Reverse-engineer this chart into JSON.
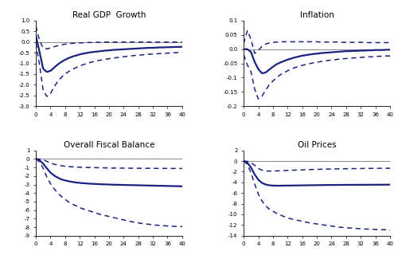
{
  "line_color": "#1a237e",
  "zero_line_color": "#888888",
  "titles": [
    "Real GDP  Growth",
    "Inflation",
    "Overall Fiscal Balance",
    "Oil Prices"
  ],
  "horizon": 41,
  "gdp": {
    "median": [
      0.3,
      -0.45,
      -1.25,
      -1.4,
      -1.35,
      -1.2,
      -1.05,
      -0.93,
      -0.83,
      -0.75,
      -0.68,
      -0.63,
      -0.58,
      -0.54,
      -0.51,
      -0.48,
      -0.46,
      -0.44,
      -0.42,
      -0.4,
      -0.39,
      -0.37,
      -0.36,
      -0.35,
      -0.34,
      -0.33,
      -0.32,
      -0.31,
      -0.3,
      -0.29,
      -0.28,
      -0.27,
      -0.27,
      -0.26,
      -0.25,
      -0.25,
      -0.24,
      -0.24,
      -0.23,
      -0.23,
      -0.22
    ],
    "upper": [
      0.75,
      0.08,
      -0.28,
      -0.32,
      -0.28,
      -0.22,
      -0.17,
      -0.13,
      -0.1,
      -0.08,
      -0.06,
      -0.05,
      -0.04,
      -0.03,
      -0.02,
      -0.02,
      -0.01,
      -0.01,
      -0.01,
      0.0,
      0.0,
      0.0,
      0.0,
      0.0,
      0.0,
      0.0,
      0.0,
      0.0,
      0.0,
      0.0,
      0.0,
      0.0,
      0.0,
      0.0,
      0.0,
      0.0,
      0.0,
      0.0,
      0.0,
      0.0,
      0.0
    ],
    "lower": [
      -0.05,
      -1.05,
      -2.25,
      -2.55,
      -2.42,
      -2.1,
      -1.85,
      -1.65,
      -1.5,
      -1.38,
      -1.28,
      -1.2,
      -1.12,
      -1.06,
      -1.0,
      -0.95,
      -0.91,
      -0.87,
      -0.84,
      -0.81,
      -0.78,
      -0.76,
      -0.73,
      -0.71,
      -0.69,
      -0.67,
      -0.65,
      -0.63,
      -0.62,
      -0.6,
      -0.59,
      -0.57,
      -0.56,
      -0.55,
      -0.54,
      -0.53,
      -0.52,
      -0.51,
      -0.5,
      -0.49,
      -0.48
    ],
    "ylim": [
      -3.0,
      1.0
    ],
    "yticks": [
      1.0,
      0.5,
      0.0,
      -0.5,
      -1.0,
      -1.5,
      -2.0,
      -2.5,
      -3.0
    ]
  },
  "inflation": {
    "median": [
      0.0,
      0.0,
      -0.01,
      -0.045,
      -0.07,
      -0.085,
      -0.082,
      -0.072,
      -0.062,
      -0.053,
      -0.047,
      -0.042,
      -0.037,
      -0.033,
      -0.029,
      -0.026,
      -0.023,
      -0.021,
      -0.019,
      -0.017,
      -0.016,
      -0.014,
      -0.013,
      -0.012,
      -0.011,
      -0.01,
      -0.009,
      -0.008,
      -0.007,
      -0.007,
      -0.006,
      -0.006,
      -0.005,
      -0.005,
      -0.004,
      -0.004,
      -0.003,
      -0.003,
      -0.003,
      -0.002,
      -0.002
    ],
    "upper": [
      0.02,
      0.065,
      0.035,
      -0.015,
      -0.005,
      0.01,
      0.018,
      0.022,
      0.024,
      0.025,
      0.026,
      0.026,
      0.026,
      0.026,
      0.026,
      0.026,
      0.026,
      0.026,
      0.026,
      0.026,
      0.026,
      0.025,
      0.025,
      0.025,
      0.025,
      0.025,
      0.025,
      0.024,
      0.024,
      0.024,
      0.024,
      0.024,
      0.024,
      0.024,
      0.023,
      0.023,
      0.023,
      0.023,
      0.023,
      0.023,
      0.023
    ],
    "lower": [
      -0.02,
      -0.055,
      -0.08,
      -0.14,
      -0.175,
      -0.165,
      -0.145,
      -0.125,
      -0.112,
      -0.1,
      -0.09,
      -0.083,
      -0.076,
      -0.07,
      -0.065,
      -0.061,
      -0.057,
      -0.054,
      -0.051,
      -0.048,
      -0.046,
      -0.044,
      -0.042,
      -0.04,
      -0.038,
      -0.037,
      -0.035,
      -0.034,
      -0.033,
      -0.032,
      -0.031,
      -0.03,
      -0.029,
      -0.028,
      -0.027,
      -0.027,
      -0.026,
      -0.025,
      -0.025,
      -0.024,
      -0.024
    ],
    "ylim": [
      -0.2,
      0.1
    ],
    "yticks": [
      0.1,
      0.05,
      0.0,
      -0.05,
      -0.1,
      -0.15,
      -0.2
    ]
  },
  "fiscal": {
    "median": [
      0.0,
      -0.15,
      -0.55,
      -1.1,
      -1.6,
      -1.95,
      -2.2,
      -2.4,
      -2.52,
      -2.62,
      -2.7,
      -2.76,
      -2.81,
      -2.85,
      -2.88,
      -2.91,
      -2.93,
      -2.95,
      -2.97,
      -2.99,
      -3.0,
      -3.02,
      -3.03,
      -3.04,
      -3.05,
      -3.06,
      -3.07,
      -3.08,
      -3.09,
      -3.1,
      -3.11,
      -3.12,
      -3.13,
      -3.14,
      -3.15,
      -3.16,
      -3.17,
      -3.18,
      -3.19,
      -3.2,
      -3.21
    ],
    "upper": [
      0.0,
      -0.02,
      -0.1,
      -0.28,
      -0.48,
      -0.62,
      -0.72,
      -0.8,
      -0.86,
      -0.9,
      -0.93,
      -0.95,
      -0.97,
      -0.99,
      -1.0,
      -1.01,
      -1.02,
      -1.03,
      -1.04,
      -1.05,
      -1.06,
      -1.07,
      -1.07,
      -1.08,
      -1.08,
      -1.08,
      -1.09,
      -1.09,
      -1.09,
      -1.1,
      -1.1,
      -1.1,
      -1.1,
      -1.11,
      -1.11,
      -1.11,
      -1.11,
      -1.12,
      -1.12,
      -1.12,
      -1.12
    ],
    "lower": [
      0.0,
      -0.35,
      -1.1,
      -2.1,
      -2.9,
      -3.5,
      -4.0,
      -4.4,
      -4.75,
      -5.05,
      -5.3,
      -5.5,
      -5.7,
      -5.88,
      -6.0,
      -6.15,
      -6.28,
      -6.42,
      -6.55,
      -6.65,
      -6.75,
      -6.85,
      -6.95,
      -7.05,
      -7.15,
      -7.25,
      -7.35,
      -7.42,
      -7.5,
      -7.57,
      -7.62,
      -7.67,
      -7.72,
      -7.77,
      -7.8,
      -7.83,
      -7.86,
      -7.88,
      -7.9,
      -7.92,
      -7.93
    ],
    "ylim": [
      -9.0,
      1.0
    ],
    "yticks": [
      1,
      0,
      -1,
      -2,
      -3,
      -4,
      -5,
      -6,
      -7,
      -8,
      -9
    ]
  },
  "oil": {
    "median": [
      0.0,
      -0.3,
      -1.2,
      -2.5,
      -3.5,
      -4.1,
      -4.4,
      -4.55,
      -4.6,
      -4.62,
      -4.62,
      -4.61,
      -4.6,
      -4.59,
      -4.58,
      -4.57,
      -4.56,
      -4.55,
      -4.54,
      -4.53,
      -4.52,
      -4.51,
      -4.5,
      -4.49,
      -4.49,
      -4.48,
      -4.48,
      -4.47,
      -4.47,
      -4.46,
      -4.46,
      -4.46,
      -4.45,
      -4.45,
      -4.45,
      -4.44,
      -4.44,
      -4.44,
      -4.44,
      -4.43,
      -4.43
    ],
    "upper": [
      0.0,
      -0.05,
      -0.3,
      -0.8,
      -1.4,
      -1.7,
      -1.85,
      -1.88,
      -1.87,
      -1.85,
      -1.82,
      -1.79,
      -1.76,
      -1.73,
      -1.7,
      -1.68,
      -1.65,
      -1.62,
      -1.6,
      -1.58,
      -1.56,
      -1.54,
      -1.52,
      -1.5,
      -1.49,
      -1.47,
      -1.46,
      -1.45,
      -1.44,
      -1.43,
      -1.42,
      -1.41,
      -1.4,
      -1.39,
      -1.38,
      -1.37,
      -1.37,
      -1.36,
      -1.36,
      -1.35,
      -1.35
    ],
    "lower": [
      0.0,
      -0.6,
      -2.2,
      -4.3,
      -6.2,
      -7.5,
      -8.4,
      -9.0,
      -9.4,
      -9.8,
      -10.1,
      -10.4,
      -10.65,
      -10.85,
      -11.0,
      -11.15,
      -11.3,
      -11.45,
      -11.6,
      -11.7,
      -11.8,
      -11.9,
      -12.0,
      -12.1,
      -12.2,
      -12.3,
      -12.38,
      -12.45,
      -12.5,
      -12.55,
      -12.6,
      -12.65,
      -12.7,
      -12.74,
      -12.77,
      -12.8,
      -12.83,
      -12.85,
      -12.87,
      -12.89,
      -12.9
    ],
    "ylim": [
      -14.0,
      2.0
    ],
    "yticks": [
      2,
      0,
      -2,
      -4,
      -6,
      -8,
      -10,
      -12,
      -14
    ]
  }
}
